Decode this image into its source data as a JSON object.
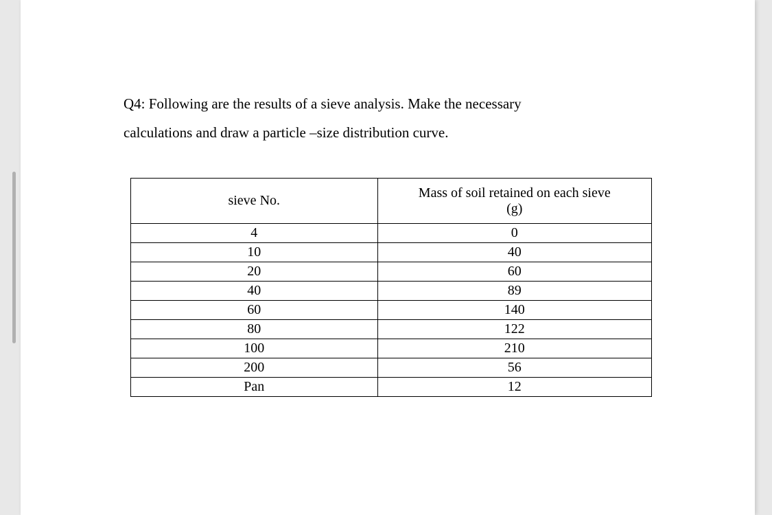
{
  "question": {
    "prefix": "Q4:",
    "line1": "Q4: Following are the results of a sieve analysis. Make the necessary",
    "line2": "calculations and draw a particle –size distribution curve."
  },
  "table": {
    "headers": {
      "col1": "sieve  No.",
      "col2_line1": "Mass of soil retained on each sieve",
      "col2_line2": "(g)"
    },
    "rows": [
      {
        "sieve": "4",
        "mass": "0"
      },
      {
        "sieve": "10",
        "mass": "40"
      },
      {
        "sieve": "20",
        "mass": "60"
      },
      {
        "sieve": "40",
        "mass": "89"
      },
      {
        "sieve": "60",
        "mass": "140"
      },
      {
        "sieve": "80",
        "mass": "122"
      },
      {
        "sieve": "100",
        "mass": "210"
      },
      {
        "sieve": "200",
        "mass": "56"
      },
      {
        "sieve": "Pan",
        "mass": "12"
      }
    ]
  },
  "styling": {
    "page_background": "#ffffff",
    "outer_background": "#e8e8e8",
    "text_color": "#000000",
    "border_color": "#000000",
    "font_family": "Times New Roman",
    "question_fontsize": 21,
    "table_fontsize": 20,
    "col1_width": 360,
    "col2_width": 400
  }
}
